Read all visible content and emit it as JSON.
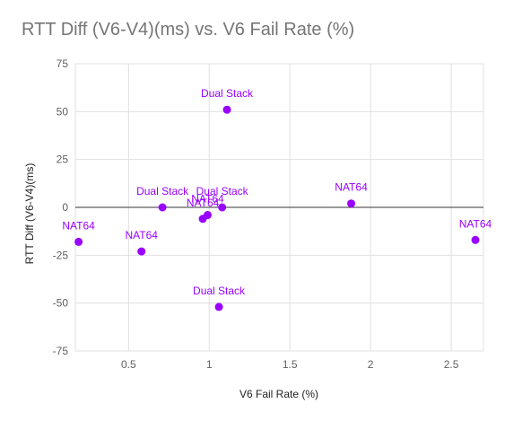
{
  "chart_data": {
    "type": "scatter",
    "title": "RTT Diff (V6-V4)(ms) vs. V6 Fail Rate (%)",
    "xlabel": "V6 Fail Rate (%)",
    "ylabel": "RTT Diff (V6-V4)(ms)",
    "xlim": [
      0.17,
      2.7
    ],
    "ylim": [
      -75,
      75
    ],
    "xticks": [
      0.5,
      1,
      1.5,
      2,
      2.5
    ],
    "yticks": [
      -75,
      -50,
      -25,
      0,
      25,
      50,
      75
    ],
    "xtick_labels": [
      "0.5",
      "1",
      "1.5",
      "2",
      "2.5"
    ],
    "ytick_labels": [
      "-75",
      "-50",
      "-25",
      "0",
      "25",
      "50",
      "75"
    ],
    "grid": true,
    "legend": "none",
    "point_color": "#9900ff",
    "points": [
      {
        "x": 0.19,
        "y": -18,
        "label": "NAT64"
      },
      {
        "x": 0.58,
        "y": -23,
        "label": "NAT64"
      },
      {
        "x": 0.71,
        "y": 0,
        "label": "Dual Stack"
      },
      {
        "x": 0.96,
        "y": -6,
        "label": "NAT64"
      },
      {
        "x": 0.99,
        "y": -4,
        "label": "NAT64"
      },
      {
        "x": 1.06,
        "y": -52,
        "label": "Dual Stack"
      },
      {
        "x": 1.08,
        "y": 0,
        "label": "Dual Stack"
      },
      {
        "x": 1.11,
        "y": 51,
        "label": "Dual Stack"
      },
      {
        "x": 1.88,
        "y": 2,
        "label": "NAT64"
      },
      {
        "x": 2.65,
        "y": -17,
        "label": "NAT64"
      }
    ]
  }
}
